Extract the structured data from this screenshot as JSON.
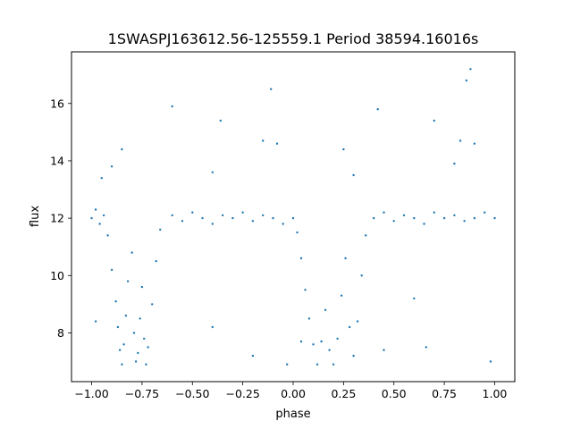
{
  "chart_data": {
    "type": "scatter",
    "title": "1SWASPJ163612.56-125559.1 Period 38594.16016s",
    "xlabel": "phase",
    "ylabel": "flux",
    "xlim": [
      -1.1,
      1.1
    ],
    "ylim": [
      6.3,
      17.8
    ],
    "xticks": [
      -1.0,
      -0.75,
      -0.5,
      -0.25,
      0.0,
      0.25,
      0.5,
      0.75,
      1.0
    ],
    "xtick_labels": [
      "−1.00",
      "−0.75",
      "−0.50",
      "−0.25",
      "0.00",
      "0.25",
      "0.50",
      "0.75",
      "1.00"
    ],
    "yticks": [
      8,
      10,
      12,
      14,
      16
    ],
    "ytick_labels": [
      "8",
      "10",
      "12",
      "14",
      "16"
    ],
    "grid": false,
    "marker_color": "#1f77b4",
    "series": [
      {
        "points": [
          [
            -1.0,
            12.0
          ],
          [
            -0.98,
            12.3
          ],
          [
            -0.96,
            11.8
          ],
          [
            -0.94,
            12.1
          ],
          [
            -0.92,
            11.4
          ],
          [
            -0.9,
            10.2
          ],
          [
            -0.88,
            9.1
          ],
          [
            -0.87,
            8.2
          ],
          [
            -0.86,
            7.4
          ],
          [
            -0.85,
            6.9
          ],
          [
            -0.84,
            7.6
          ],
          [
            -0.83,
            8.6
          ],
          [
            -0.82,
            9.8
          ],
          [
            -0.8,
            10.8
          ],
          [
            -0.79,
            8.0
          ],
          [
            -0.78,
            7.0
          ],
          [
            -0.77,
            7.3
          ],
          [
            -0.76,
            8.5
          ],
          [
            -0.75,
            9.6
          ],
          [
            -0.74,
            7.8
          ],
          [
            -0.73,
            6.9
          ],
          [
            -0.72,
            7.5
          ],
          [
            -0.7,
            9.0
          ],
          [
            -0.68,
            10.5
          ],
          [
            -0.66,
            11.6
          ],
          [
            -0.6,
            12.1
          ],
          [
            -0.55,
            11.9
          ],
          [
            -0.5,
            12.2
          ],
          [
            -0.45,
            12.0
          ],
          [
            -0.4,
            11.8
          ],
          [
            -0.35,
            12.1
          ],
          [
            -0.3,
            12.0
          ],
          [
            -0.25,
            12.2
          ],
          [
            -0.2,
            11.9
          ],
          [
            -0.15,
            12.1
          ],
          [
            -0.1,
            12.0
          ],
          [
            -0.05,
            11.8
          ],
          [
            0.0,
            12.0
          ],
          [
            0.02,
            11.5
          ],
          [
            0.04,
            10.6
          ],
          [
            0.06,
            9.5
          ],
          [
            0.08,
            8.5
          ],
          [
            0.1,
            7.6
          ],
          [
            0.12,
            6.9
          ],
          [
            0.14,
            7.7
          ],
          [
            0.16,
            8.8
          ],
          [
            0.18,
            7.4
          ],
          [
            0.2,
            6.9
          ],
          [
            0.22,
            7.8
          ],
          [
            0.24,
            9.3
          ],
          [
            0.26,
            10.6
          ],
          [
            0.28,
            8.2
          ],
          [
            0.3,
            7.2
          ],
          [
            0.32,
            8.4
          ],
          [
            0.34,
            10.0
          ],
          [
            0.36,
            11.4
          ],
          [
            0.4,
            12.0
          ],
          [
            0.45,
            12.2
          ],
          [
            0.5,
            11.9
          ],
          [
            0.55,
            12.1
          ],
          [
            0.6,
            12.0
          ],
          [
            0.65,
            11.8
          ],
          [
            0.7,
            12.2
          ],
          [
            0.75,
            12.0
          ],
          [
            0.8,
            12.1
          ],
          [
            0.85,
            11.9
          ],
          [
            0.9,
            12.0
          ],
          [
            0.95,
            12.2
          ],
          [
            1.0,
            12.0
          ],
          [
            -0.9,
            13.8
          ],
          [
            -0.85,
            14.4
          ],
          [
            -0.6,
            15.9
          ],
          [
            -0.36,
            15.4
          ],
          [
            -0.15,
            14.7
          ],
          [
            -0.11,
            16.5
          ],
          [
            -0.08,
            14.6
          ],
          [
            0.25,
            14.4
          ],
          [
            0.42,
            15.8
          ],
          [
            0.7,
            15.4
          ],
          [
            0.83,
            14.7
          ],
          [
            0.86,
            16.8
          ],
          [
            0.88,
            17.2
          ],
          [
            0.9,
            14.6
          ],
          [
            0.8,
            13.9
          ],
          [
            -0.95,
            13.4
          ],
          [
            -0.4,
            13.6
          ],
          [
            0.3,
            13.5
          ],
          [
            -0.2,
            7.2
          ],
          [
            -0.03,
            6.9
          ],
          [
            0.04,
            7.7
          ],
          [
            0.45,
            7.4
          ],
          [
            0.66,
            7.5
          ],
          [
            0.98,
            7.0
          ],
          [
            -0.98,
            8.4
          ],
          [
            0.6,
            9.2
          ],
          [
            -0.4,
            8.2
          ]
        ]
      }
    ]
  }
}
